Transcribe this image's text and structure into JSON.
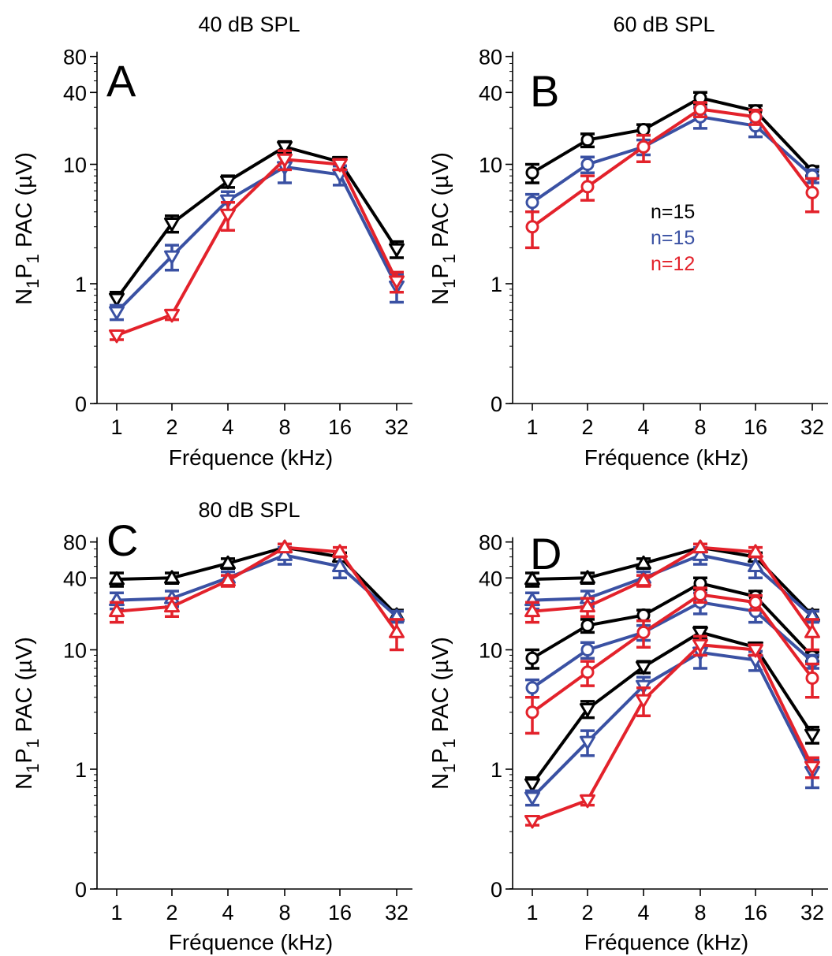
{
  "colors": {
    "black": "#000000",
    "blue": "#3a51a3",
    "red": "#e3222b"
  },
  "chart_data": [
    {
      "panel": "A",
      "type": "line",
      "title": "40 dB SPL",
      "xlabel": "Fréquence (kHz)",
      "ylabel_parts": {
        "n": "N",
        "sub1": "1",
        "p": "P",
        "sub2": "1",
        "rest": " PAC (µV)"
      },
      "x_tick_labels": [
        "1",
        "2",
        "4",
        "8",
        "16",
        "32"
      ],
      "y_ticks": [
        0,
        1,
        10,
        40,
        80
      ],
      "yscale": "log",
      "legend": [],
      "series": [
        {
          "color": "black",
          "marker": "triangle-down",
          "values": [
            0.75,
            3.2,
            7.2,
            14,
            10.5,
            1.95
          ],
          "err": [
            0.1,
            0.5,
            0.8,
            1.5,
            0.8,
            0.3
          ]
        },
        {
          "color": "blue",
          "marker": "triangle-down",
          "values": [
            0.58,
            1.7,
            5.0,
            9.5,
            8.2,
            0.95
          ],
          "err": [
            0.08,
            0.4,
            0.9,
            2.5,
            1.5,
            0.25
          ]
        },
        {
          "color": "red",
          "marker": "triangle-down",
          "values": [
            0.37,
            0.55,
            3.8,
            11,
            10,
            1.05
          ],
          "err": [
            0.03,
            0.05,
            1.0,
            2.0,
            1.0,
            0.2
          ]
        }
      ]
    },
    {
      "panel": "B",
      "type": "line",
      "title": "60 dB SPL",
      "xlabel": "Fréquence (kHz)",
      "ylabel_parts": {
        "n": "N",
        "sub1": "1",
        "p": "P",
        "sub2": "1",
        "rest": " PAC (µV)"
      },
      "x_tick_labels": [
        "1",
        "2",
        "4",
        "8",
        "16",
        "32"
      ],
      "y_ticks": [
        0,
        1,
        10,
        40,
        80
      ],
      "yscale": "log",
      "legend": [
        {
          "text": "n=15",
          "color": "black"
        },
        {
          "text": "n=15",
          "color": "blue"
        },
        {
          "text": "n=12",
          "color": "red"
        }
      ],
      "series": [
        {
          "color": "black",
          "marker": "circle",
          "values": [
            8.5,
            16,
            19.5,
            36,
            28,
            8.8
          ],
          "err": [
            1.5,
            2.0,
            2.0,
            4.0,
            3.0,
            0.8
          ]
        },
        {
          "color": "blue",
          "marker": "circle",
          "values": [
            4.8,
            10,
            14,
            25,
            21,
            8.0
          ],
          "err": [
            0.8,
            1.5,
            2.0,
            5.0,
            4.0,
            1.0
          ]
        },
        {
          "color": "red",
          "marker": "circle",
          "values": [
            3.0,
            6.5,
            14,
            29,
            25,
            5.8
          ],
          "err": [
            1.0,
            1.5,
            3.5,
            4.0,
            3.5,
            1.8
          ]
        }
      ]
    },
    {
      "panel": "C",
      "type": "line",
      "title": "80 dB SPL",
      "xlabel": "Fréquence (kHz)",
      "ylabel_parts": {
        "n": "N",
        "sub1": "1",
        "p": "P",
        "sub2": "1",
        "rest": " PAC (µV)"
      },
      "x_tick_labels": [
        "1",
        "2",
        "4",
        "8",
        "16",
        "32"
      ],
      "y_ticks": [
        0,
        1,
        10,
        40,
        80
      ],
      "yscale": "log",
      "legend": [],
      "series": [
        {
          "color": "black",
          "marker": "triangle-up",
          "values": [
            39,
            40,
            53,
            72,
            60,
            19.5
          ],
          "err": [
            5,
            4,
            5,
            5,
            5,
            2
          ]
        },
        {
          "color": "blue",
          "marker": "triangle-up",
          "values": [
            26,
            27,
            40,
            62,
            50,
            19
          ],
          "err": [
            4,
            4,
            5,
            10,
            10,
            2
          ]
        },
        {
          "color": "red",
          "marker": "triangle-up",
          "values": [
            21,
            23,
            38,
            72,
            66,
            14
          ],
          "err": [
            4,
            4,
            4,
            5,
            6,
            4
          ]
        }
      ]
    },
    {
      "panel": "D",
      "type": "line",
      "title": "",
      "xlabel": "Fréquence (kHz)",
      "ylabel_parts": {
        "n": "N",
        "sub1": "1",
        "p": "P",
        "sub2": "1",
        "rest": " PAC (µV)"
      },
      "x_tick_labels": [
        "1",
        "2",
        "4",
        "8",
        "16",
        "32"
      ],
      "y_ticks": [
        0,
        1,
        10,
        40,
        80
      ],
      "yscale": "log",
      "legend": [],
      "series": [
        {
          "color": "black",
          "marker": "triangle-down",
          "values": [
            0.75,
            3.2,
            7.2,
            14,
            10.5,
            1.95
          ],
          "err": [
            0.1,
            0.5,
            0.8,
            1.5,
            0.8,
            0.3
          ]
        },
        {
          "color": "blue",
          "marker": "triangle-down",
          "values": [
            0.58,
            1.7,
            5.0,
            9.5,
            8.2,
            0.95
          ],
          "err": [
            0.08,
            0.4,
            0.9,
            2.5,
            1.5,
            0.25
          ]
        },
        {
          "color": "red",
          "marker": "triangle-down",
          "values": [
            0.37,
            0.55,
            3.8,
            11,
            10,
            1.05
          ],
          "err": [
            0.03,
            0.05,
            1.0,
            2.0,
            1.0,
            0.2
          ]
        },
        {
          "color": "black",
          "marker": "circle",
          "values": [
            8.5,
            16,
            19.5,
            36,
            28,
            8.8
          ],
          "err": [
            1.5,
            2.0,
            2.0,
            4.0,
            3.0,
            0.8
          ]
        },
        {
          "color": "blue",
          "marker": "circle",
          "values": [
            4.8,
            10,
            14,
            25,
            21,
            8.0
          ],
          "err": [
            0.8,
            1.5,
            2.0,
            5.0,
            4.0,
            1.0
          ]
        },
        {
          "color": "red",
          "marker": "circle",
          "values": [
            3.0,
            6.5,
            14,
            29,
            25,
            5.8
          ],
          "err": [
            1.0,
            1.5,
            3.5,
            4.0,
            3.5,
            1.8
          ]
        },
        {
          "color": "black",
          "marker": "triangle-up",
          "values": [
            39,
            40,
            53,
            72,
            60,
            19.5
          ],
          "err": [
            5,
            4,
            5,
            5,
            5,
            2
          ]
        },
        {
          "color": "blue",
          "marker": "triangle-up",
          "values": [
            26,
            27,
            40,
            62,
            50,
            19
          ],
          "err": [
            4,
            4,
            5,
            10,
            10,
            2
          ]
        },
        {
          "color": "red",
          "marker": "triangle-up",
          "values": [
            21,
            23,
            38,
            72,
            66,
            14
          ],
          "err": [
            4,
            4,
            4,
            5,
            6,
            4
          ]
        }
      ]
    }
  ]
}
